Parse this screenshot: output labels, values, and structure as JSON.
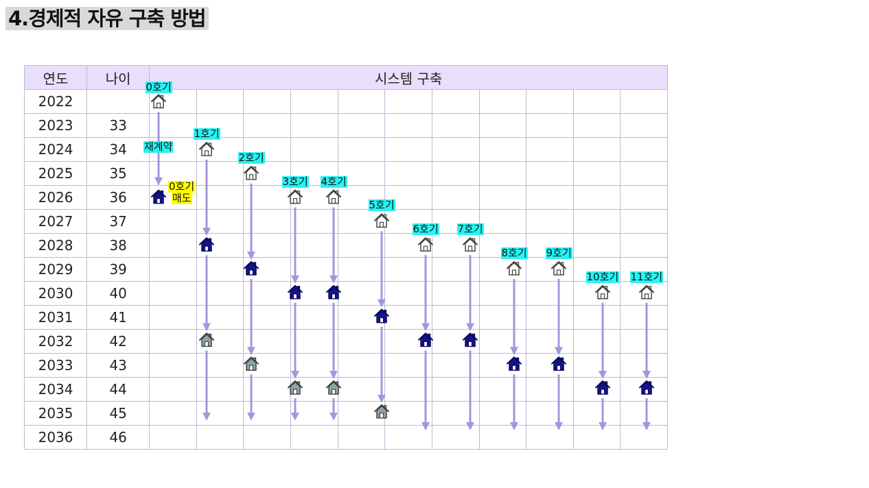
{
  "title": "4.경제적 자유 구축 방법",
  "table": {
    "headers": [
      "연도",
      "나이",
      "시스템 구축"
    ],
    "rows": [
      {
        "year": "2022",
        "age": ""
      },
      {
        "year": "2023",
        "age": "33"
      },
      {
        "year": "2024",
        "age": "34"
      },
      {
        "year": "2025",
        "age": "35"
      },
      {
        "year": "2026",
        "age": "36"
      },
      {
        "year": "2027",
        "age": "37"
      },
      {
        "year": "2028",
        "age": "38"
      },
      {
        "year": "2029",
        "age": "39"
      },
      {
        "year": "2030",
        "age": "40"
      },
      {
        "year": "2031",
        "age": "41"
      },
      {
        "year": "2032",
        "age": "42"
      },
      {
        "year": "2033",
        "age": "43"
      },
      {
        "year": "2034",
        "age": "44"
      },
      {
        "year": "2035",
        "age": "45"
      },
      {
        "year": "2036",
        "age": "46"
      }
    ]
  },
  "colors": {
    "header_bg": "#e9defb",
    "grid_line": "#b9b9d6",
    "arrow": "#a794dc",
    "house_outline": "#444444",
    "house_filled": "#14148c",
    "house_sold": "#8fa3a3",
    "label_cyan": "#29f2f2",
    "label_yellow": "#ffff00"
  },
  "units": [
    {
      "label": "0호기",
      "start_row": 0,
      "filled_row": 4
    },
    {
      "label": "1호기",
      "start_row": 2,
      "filled_row": 6,
      "sold_row": 10
    },
    {
      "label": "2호기",
      "start_row": 3,
      "filled_row": 7,
      "sold_row": 11
    },
    {
      "label": "3호기",
      "start_row": 4,
      "filled_row": 8,
      "sold_row": 12
    },
    {
      "label": "4호기",
      "start_row": 4,
      "filled_row": 8,
      "sold_row": 12
    },
    {
      "label": "5호기",
      "start_row": 5,
      "filled_row": 9,
      "sold_row": 13
    },
    {
      "label": "6호기",
      "start_row": 6,
      "filled_row": 10
    },
    {
      "label": "7호기",
      "start_row": 6,
      "filled_row": 10
    },
    {
      "label": "8호기",
      "start_row": 7,
      "filled_row": 11
    },
    {
      "label": "9호기",
      "start_row": 7,
      "filled_row": 11
    },
    {
      "label": "10호기",
      "start_row": 8,
      "filled_row": 12
    },
    {
      "label": "11호기",
      "start_row": 8,
      "filled_row": 12
    }
  ],
  "annotations": {
    "recontract": "재계약",
    "sale_unit": "0호기",
    "sale_action": "매도"
  }
}
